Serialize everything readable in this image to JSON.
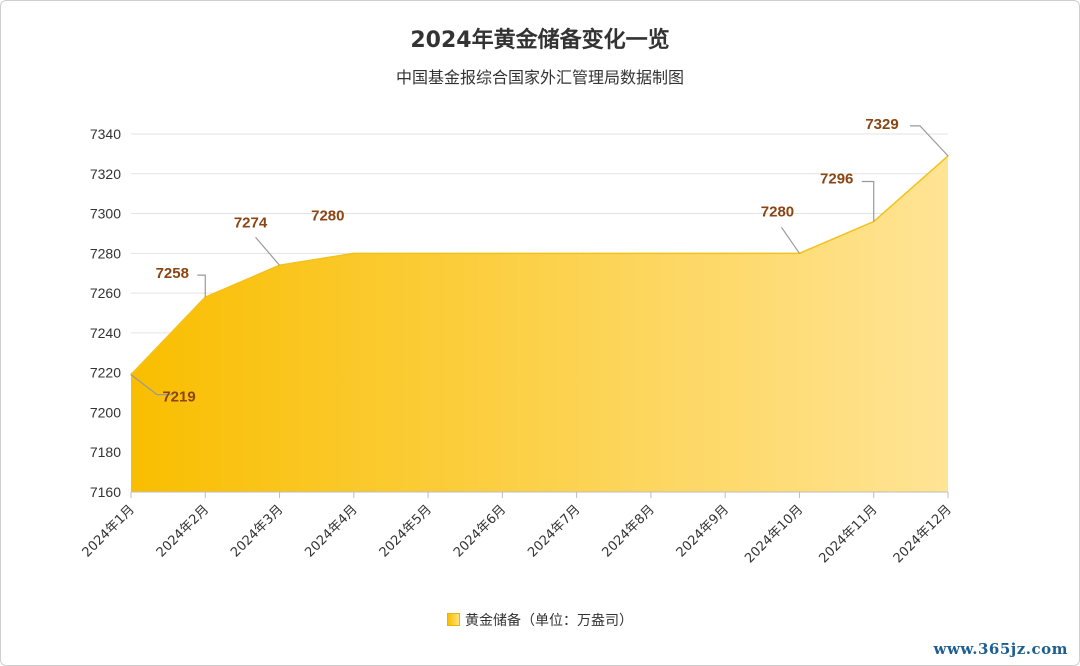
{
  "chart_data": {
    "type": "area",
    "title": "2024年黄金储备变化一览",
    "subtitle": "中国基金报综合国家外汇管理局数据制图",
    "categories": [
      "2024年1月",
      "2024年2月",
      "2024年3月",
      "2024年4月",
      "2024年5月",
      "2024年6月",
      "2024年7月",
      "2024年8月",
      "2024年9月",
      "2024年10月",
      "2024年11月",
      "2024年12月"
    ],
    "series": [
      {
        "name": "黄金储备（单位：万盎司）",
        "values": [
          7219,
          7258,
          7274,
          7280,
          7280,
          7280,
          7280,
          7280,
          7280,
          7280,
          7296,
          7329
        ],
        "color": "#f9be00",
        "color_end": "#ffe495",
        "line_color": "#f2c21b"
      }
    ],
    "data_labels": [
      {
        "index": 0,
        "text": "7219"
      },
      {
        "index": 1,
        "text": "7258"
      },
      {
        "index": 2,
        "text": "7274"
      },
      {
        "index": 3,
        "text": "7280"
      },
      {
        "index": 9,
        "text": "7280"
      },
      {
        "index": 10,
        "text": "7296"
      },
      {
        "index": 11,
        "text": "7329"
      }
    ],
    "y_ticks": [
      7160,
      7180,
      7200,
      7220,
      7240,
      7260,
      7280,
      7300,
      7320,
      7340
    ],
    "ylim": [
      7160,
      7340
    ],
    "grid": true,
    "legend_position": "bottom",
    "label_color": "#8b4513"
  },
  "watermark": "www.365jz.com"
}
